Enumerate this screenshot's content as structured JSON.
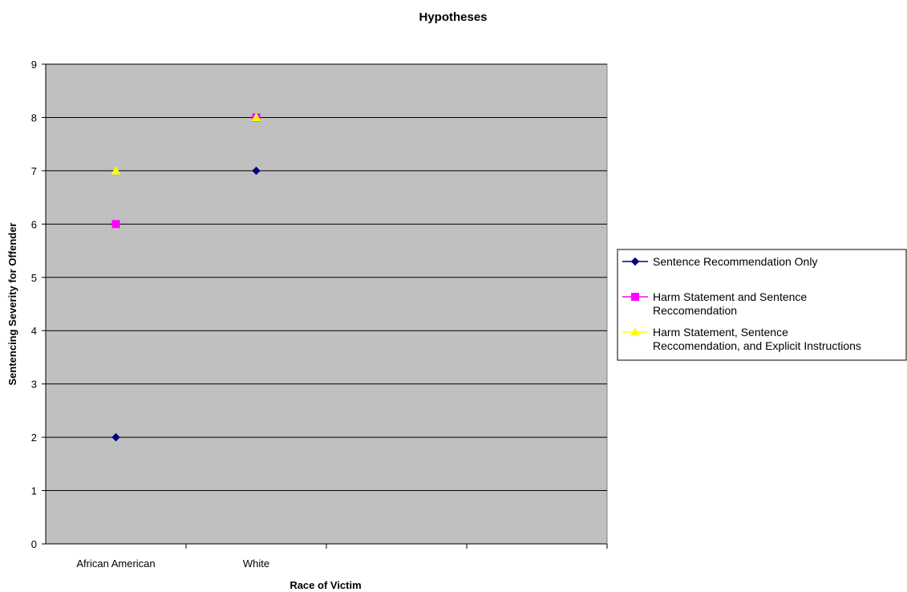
{
  "chart_data": {
    "type": "scatter",
    "title": "Hypotheses",
    "xlabel": "Race of Victim",
    "ylabel": "Sentencing Severity for Offender",
    "categories": [
      "African American",
      "White"
    ],
    "ylim": [
      0,
      9
    ],
    "y_ticks": [
      0,
      1,
      2,
      3,
      4,
      5,
      6,
      7,
      8,
      9
    ],
    "grid": true,
    "legend_position": "right",
    "plot_background": "#C0C0C0",
    "series": [
      {
        "name": "Sentence Recommendation Only",
        "values": [
          2,
          7
        ],
        "color": "#000080",
        "marker": "diamond",
        "legend_lines": [
          "Sentence Recommendation Only"
        ]
      },
      {
        "name": "Harm Statement and Sentence Reccomendation",
        "values": [
          6,
          8
        ],
        "color": "#FF00FF",
        "marker": "square",
        "legend_lines": [
          "Harm Statement and Sentence",
          "Reccomendation"
        ]
      },
      {
        "name": "Harm Statement, Sentence Reccomendation, and Explicit Instructions",
        "values": [
          7,
          8
        ],
        "color": "#FFFF00",
        "marker": "triangle",
        "legend_lines": [
          "Harm Statement, Sentence",
          "Reccomendation, and Explicit Instructions"
        ]
      }
    ]
  }
}
